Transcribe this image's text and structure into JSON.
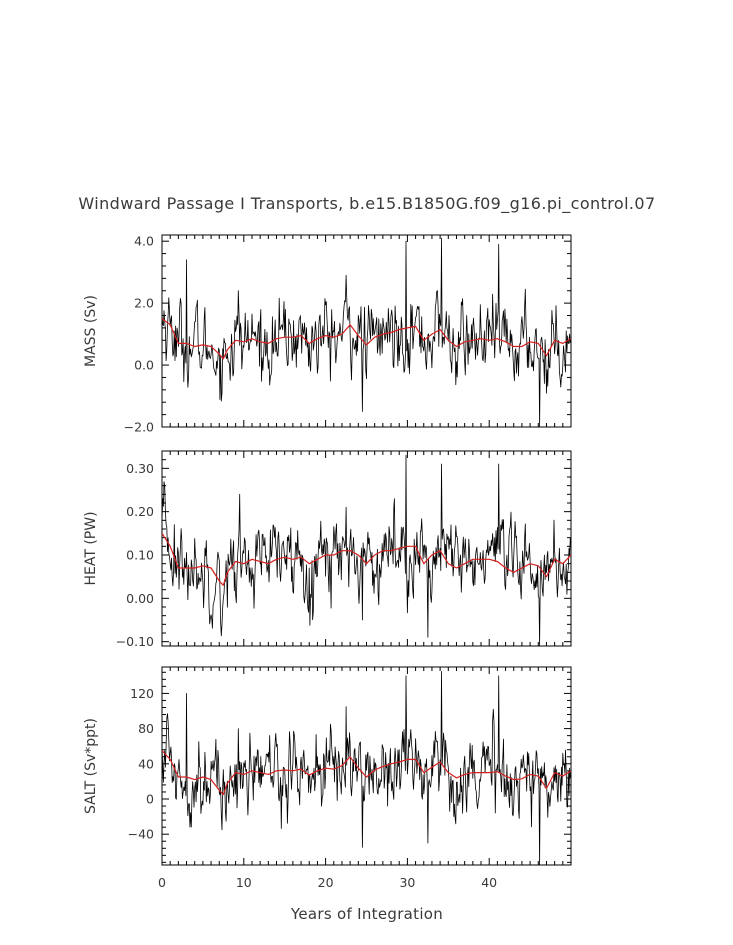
{
  "figure": {
    "title": "Windward Passage I Transports, b.e15.B1850G.f09_g16.pi_control.07",
    "xlabel": "Years of Integration"
  },
  "chart_data": [
    {
      "type": "line",
      "ylabel": "MASS (Sv)",
      "xlim": [
        0,
        50
      ],
      "ylim": [
        -2.0,
        4.2
      ],
      "x_ticks": [
        0,
        10,
        20,
        30,
        40
      ],
      "x_tick_labels": [
        "0",
        "10",
        "20",
        "30",
        "40"
      ],
      "y_ticks": [
        -2.0,
        0.0,
        2.0,
        4.0
      ],
      "y_tick_labels": [
        "−2.0",
        "0.0",
        "2.0",
        "4.0"
      ],
      "series": [
        {
          "color": "#000000",
          "line_style": "thin-noisy-monthly",
          "x": [
            0.3,
            1.5,
            2.8,
            3.0,
            5.5,
            7.3,
            8.5,
            9.3,
            12.5,
            15,
            16.5,
            18,
            20.5,
            22.5,
            24.5,
            27.5,
            29.8,
            31.5,
            34.2,
            36.5,
            40.2,
            41.2,
            43.5,
            46.2,
            48.5,
            49.8
          ],
          "y": [
            1.4,
            1.1,
            0.6,
            3.4,
            0.6,
            -0.9,
            1.0,
            2.4,
            0.8,
            0.9,
            1.0,
            0.7,
            1.0,
            2.9,
            -1.5,
            1.0,
            4.0,
            0.6,
            4.1,
            0.8,
            1.2,
            3.9,
            0.4,
            -2.0,
            0.8,
            1.0
          ]
        },
        {
          "color": "#d62020",
          "line_style": "running-mean",
          "x": [
            0,
            1,
            2,
            3,
            4,
            5,
            6,
            7,
            7.5,
            8,
            9,
            10,
            11,
            12,
            13,
            14,
            15,
            16,
            17,
            18,
            19,
            20,
            21,
            22,
            23,
            24,
            25,
            26,
            27,
            28,
            29,
            30,
            31,
            32,
            33,
            34,
            35,
            36,
            37,
            38,
            39,
            40,
            41,
            42,
            43,
            44,
            45,
            46,
            47,
            48,
            49,
            50
          ],
          "y": [
            1.5,
            1.3,
            0.7,
            0.7,
            0.6,
            0.65,
            0.6,
            0.35,
            0.2,
            0.5,
            0.8,
            0.75,
            0.85,
            0.75,
            0.7,
            0.85,
            0.9,
            0.9,
            0.95,
            0.7,
            0.85,
            0.95,
            0.9,
            1.0,
            1.3,
            0.95,
            0.65,
            0.9,
            1.0,
            1.05,
            1.15,
            1.2,
            1.25,
            0.8,
            1.0,
            1.15,
            0.8,
            0.6,
            0.75,
            0.8,
            0.85,
            0.8,
            0.85,
            0.75,
            0.6,
            0.6,
            0.75,
            0.7,
            0.3,
            0.8,
            0.7,
            0.85
          ]
        }
      ]
    },
    {
      "type": "line",
      "ylabel": "HEAT (PW)",
      "xlim": [
        0,
        50
      ],
      "ylim": [
        -0.11,
        0.34
      ],
      "x_ticks": [
        0,
        10,
        20,
        30,
        40
      ],
      "x_tick_labels": [
        "0",
        "10",
        "20",
        "30",
        "40"
      ],
      "y_ticks": [
        -0.1,
        0.0,
        0.1,
        0.2,
        0.3
      ],
      "y_tick_labels": [
        "−0.10",
        "0.00",
        "0.10",
        "0.20",
        "0.30"
      ],
      "series": [
        {
          "color": "#000000",
          "line_style": "thin-noisy-monthly",
          "x": [
            0.3,
            1.5,
            2.8,
            5.5,
            7.3,
            9.5,
            12,
            15,
            16.5,
            18,
            20.5,
            22.5,
            24.5,
            27.5,
            29.8,
            31.5,
            32.5,
            34.2,
            36.5,
            40.2,
            41.2,
            43.5,
            46.2,
            48.5,
            49.8
          ],
          "y": [
            0.26,
            0.17,
            0.07,
            0.07,
            -0.06,
            0.24,
            0.08,
            0.09,
            0.09,
            0.07,
            0.1,
            0.21,
            -0.05,
            0.1,
            0.33,
            0.06,
            -0.09,
            0.31,
            0.1,
            0.11,
            0.31,
            0.06,
            -0.11,
            0.08,
            0.1
          ]
        },
        {
          "color": "#d62020",
          "line_style": "running-mean",
          "x": [
            0,
            1,
            2,
            3,
            4,
            5,
            6,
            7,
            7.5,
            8,
            9,
            10,
            11,
            12,
            13,
            14,
            15,
            16,
            17,
            18,
            19,
            20,
            21,
            22,
            23,
            24,
            25,
            26,
            27,
            28,
            29,
            30,
            31,
            32,
            33,
            34,
            35,
            36,
            37,
            38,
            39,
            40,
            41,
            42,
            43,
            44,
            45,
            46,
            47,
            48,
            49,
            50
          ],
          "y": [
            0.15,
            0.12,
            0.07,
            0.07,
            0.07,
            0.075,
            0.07,
            0.04,
            0.03,
            0.06,
            0.085,
            0.08,
            0.09,
            0.085,
            0.08,
            0.09,
            0.095,
            0.09,
            0.095,
            0.08,
            0.09,
            0.1,
            0.1,
            0.11,
            0.11,
            0.1,
            0.08,
            0.1,
            0.11,
            0.11,
            0.115,
            0.12,
            0.12,
            0.08,
            0.1,
            0.11,
            0.08,
            0.07,
            0.08,
            0.09,
            0.09,
            0.09,
            0.085,
            0.07,
            0.06,
            0.07,
            0.08,
            0.075,
            0.05,
            0.09,
            0.08,
            0.1
          ]
        }
      ]
    },
    {
      "type": "line",
      "ylabel": "SALT (Sv*ppt)",
      "xlim": [
        0,
        50
      ],
      "ylim": [
        -75,
        150
      ],
      "x_ticks": [
        0,
        10,
        20,
        30,
        40
      ],
      "x_tick_labels": [
        "0",
        "10",
        "20",
        "30",
        "40"
      ],
      "y_ticks": [
        -40,
        0,
        40,
        80,
        120
      ],
      "y_tick_labels": [
        "−40",
        "0",
        "40",
        "80",
        "120"
      ],
      "series": [
        {
          "color": "#000000",
          "line_style": "thin-noisy-monthly",
          "x": [
            0.3,
            1.5,
            2.8,
            3.0,
            5.5,
            7.3,
            9.3,
            12.5,
            15,
            16.5,
            18,
            20.5,
            22.5,
            24.5,
            27.5,
            29.8,
            31.5,
            32.5,
            34.2,
            36.5,
            40.2,
            41.2,
            43.5,
            46.2,
            48.5,
            49.8
          ],
          "y": [
            55,
            40,
            20,
            120,
            20,
            -35,
            80,
            30,
            33,
            35,
            28,
            38,
            105,
            -55,
            38,
            140,
            22,
            -50,
            145,
            35,
            45,
            140,
            20,
            -75,
            30,
            35
          ]
        },
        {
          "color": "#d62020",
          "line_style": "running-mean",
          "x": [
            0,
            1,
            2,
            3,
            4,
            5,
            6,
            7,
            7.5,
            8,
            9,
            10,
            11,
            12,
            13,
            14,
            15,
            16,
            17,
            18,
            19,
            20,
            21,
            22,
            23,
            24,
            25,
            26,
            27,
            28,
            29,
            30,
            31,
            32,
            33,
            34,
            35,
            36,
            37,
            38,
            39,
            40,
            41,
            42,
            43,
            44,
            45,
            46,
            47,
            48,
            49,
            50
          ],
          "y": [
            55,
            45,
            25,
            25,
            22,
            25,
            22,
            10,
            5,
            18,
            30,
            28,
            32,
            30,
            28,
            32,
            33,
            32,
            34,
            27,
            32,
            35,
            34,
            38,
            48,
            35,
            25,
            33,
            37,
            40,
            42,
            45,
            45,
            30,
            36,
            42,
            30,
            24,
            28,
            30,
            30,
            30,
            31,
            26,
            22,
            23,
            28,
            26,
            12,
            30,
            26,
            32
          ]
        }
      ]
    }
  ]
}
